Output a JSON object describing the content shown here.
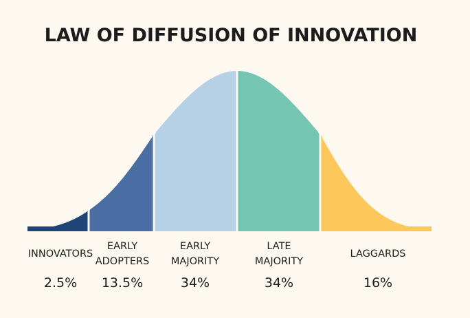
{
  "chart_data": {
    "type": "area",
    "title": "LAW OF DIFFUSION OF INNOVATION",
    "segments": [
      {
        "label_lines": [
          "INNOVATORS"
        ],
        "value_label": "2.5%",
        "share": 2.5,
        "color": "#1f4577"
      },
      {
        "label_lines": [
          "EARLY",
          "ADOPTERS"
        ],
        "value_label": "13.5%",
        "share": 13.5,
        "color": "#4a6ea3"
      },
      {
        "label_lines": [
          "EARLY",
          "MAJORITY"
        ],
        "value_label": "34%",
        "share": 34,
        "color": "#b6d1e6"
      },
      {
        "label_lines": [
          "LATE",
          "MAJORITY"
        ],
        "value_label": "34%",
        "share": 34,
        "color": "#75c5b3"
      },
      {
        "label_lines": [
          "LAGGARDS"
        ],
        "value_label": "16%",
        "share": 16,
        "color": "#fcc75b"
      }
    ],
    "boundaries_sd": [
      -3,
      -2,
      -1,
      0,
      1,
      3
    ],
    "legend": "none",
    "grid": false
  }
}
